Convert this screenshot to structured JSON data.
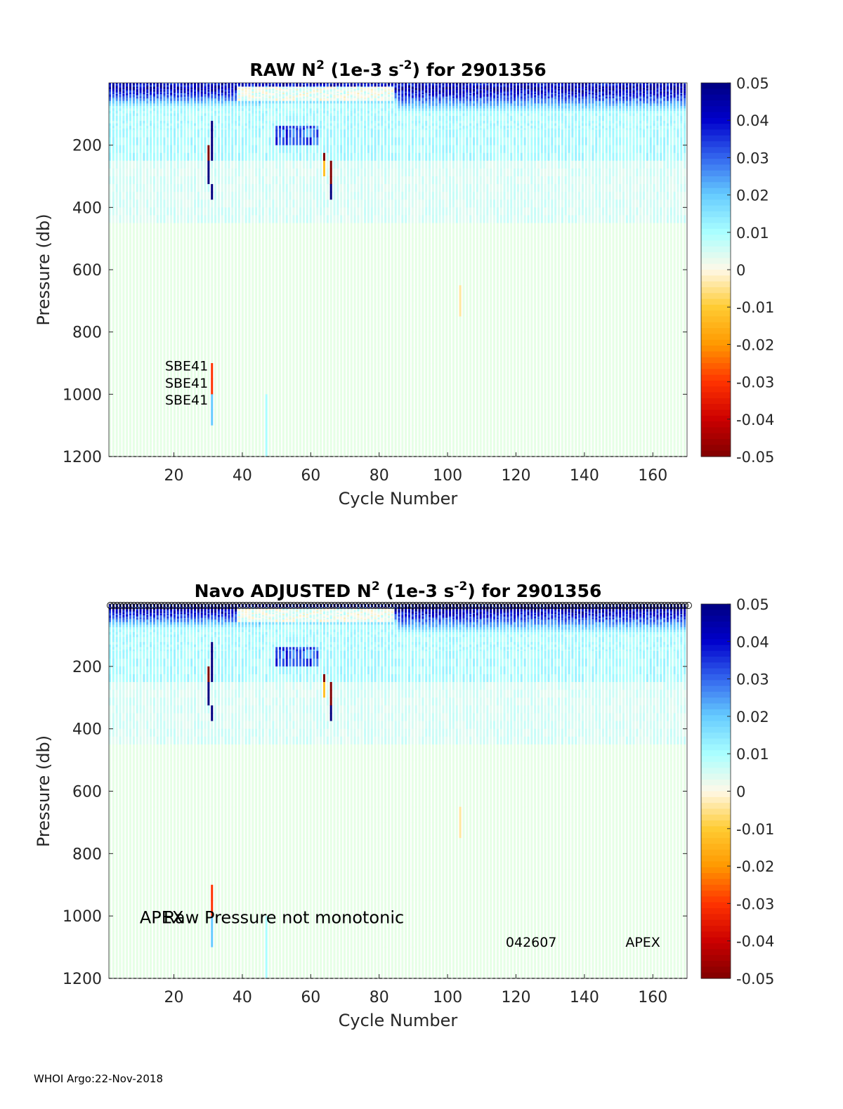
{
  "footer": "WHOI Argo:22-Nov-2018",
  "colorbar": {
    "ticks": [
      "0.05",
      "0.04",
      "0.03",
      "0.02",
      "0.01",
      "0",
      "-0.01",
      "-0.02",
      "-0.03",
      "-0.04",
      "-0.05"
    ],
    "range": [
      -0.05,
      0.05
    ],
    "colormap": [
      "#800000",
      "#cc0000",
      "#ff3300",
      "#ff9900",
      "#ffcc33",
      "#fff8e8",
      "#aaffff",
      "#66ccff",
      "#3366ee",
      "#0000cc",
      "#000080"
    ]
  },
  "chart_data": [
    {
      "type": "heatmap",
      "title": {
        "pre": "RAW N",
        "sup1": "2",
        "mid": " (1e-3 s",
        "sup2": "-2",
        "post": ") for 2901356"
      },
      "xlabel": "Cycle Number",
      "ylabel": "Pressure (db)",
      "xlim": [
        1,
        170
      ],
      "ylim": [
        0,
        1200
      ],
      "y_reversed": true,
      "xticks": [
        "20",
        "40",
        "60",
        "80",
        "100",
        "120",
        "140",
        "160"
      ],
      "yticks": [
        "200",
        "400",
        "600",
        "800",
        "1000",
        "1200"
      ],
      "clim": [
        -0.05,
        0.05
      ],
      "n_cycles": 170,
      "annotations": [
        {
          "text": "SBE41",
          "cycle": 30,
          "pressure": 910
        },
        {
          "text": "SBE41",
          "cycle": 30,
          "pressure": 965
        },
        {
          "text": "SBE41",
          "cycle": 30,
          "pressure": 1020
        }
      ],
      "circle_markers": false
    },
    {
      "type": "heatmap",
      "title": {
        "pre": "Navo  ADJUSTED N",
        "sup1": "2",
        "mid": " (1e-3 s",
        "sup2": "-2",
        "post": ") for 2901356"
      },
      "xlabel": "Cycle Number",
      "ylabel": "Pressure (db)",
      "xlim": [
        1,
        170
      ],
      "ylim": [
        0,
        1200
      ],
      "y_reversed": true,
      "xticks": [
        "20",
        "40",
        "60",
        "80",
        "100",
        "120",
        "140",
        "160"
      ],
      "yticks": [
        "200",
        "400",
        "600",
        "800",
        "1000",
        "1200"
      ],
      "clim": [
        -0.05,
        0.05
      ],
      "n_cycles": 170,
      "annotations": [
        {
          "text": "APEX",
          "cycle": 10,
          "pressure": 1010
        },
        {
          "text": "Raw Pressure not monotonic",
          "cycle": 17,
          "pressure": 1010
        },
        {
          "text": "042607",
          "cycle": 117,
          "pressure": 1085
        },
        {
          "text": "APEX",
          "cycle": 152,
          "pressure": 1085
        }
      ],
      "circle_markers": true
    }
  ]
}
